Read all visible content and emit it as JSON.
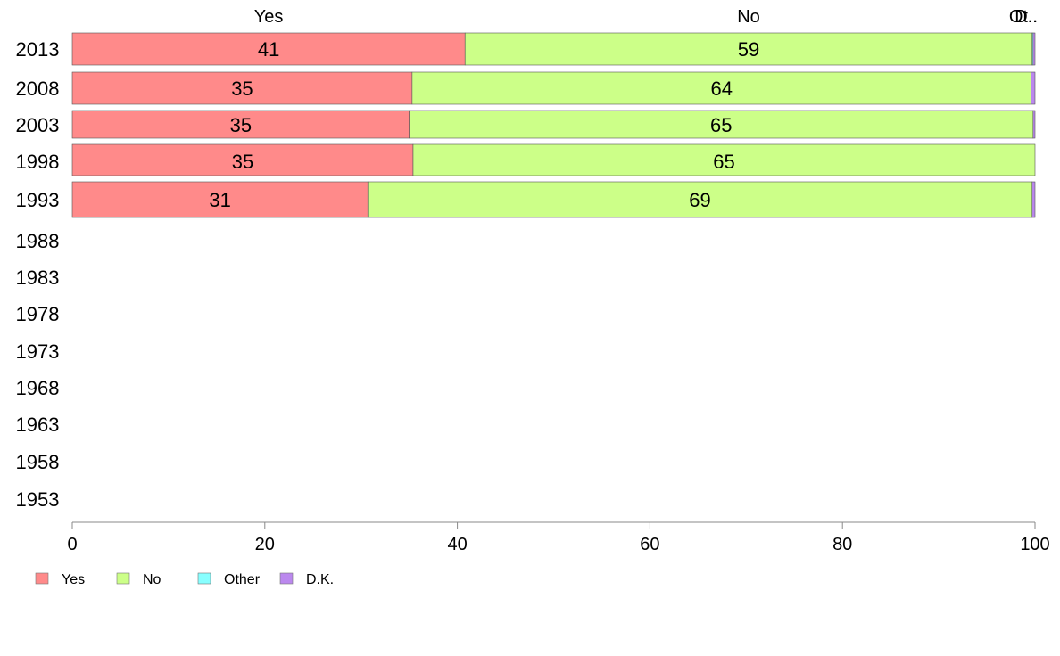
{
  "chart_data": {
    "type": "bar",
    "orientation": "horizontal",
    "stacked": true,
    "title": "",
    "xlabel": "",
    "ylabel": "",
    "xlim": [
      0,
      100
    ],
    "x_ticks": [
      "0",
      "20",
      "40",
      "60",
      "80",
      "100"
    ],
    "categories": [
      "2013",
      "2008",
      "2003",
      "1998",
      "1993",
      "1988",
      "1983",
      "1978",
      "1973",
      "1968",
      "1963",
      "1958",
      "1953"
    ],
    "series": [
      {
        "name": "Yes",
        "color": "#ff8a8a",
        "values": [
          40.8,
          35.3,
          35.0,
          35.4,
          30.7,
          null,
          null,
          null,
          null,
          null,
          null,
          null,
          null
        ],
        "labels": [
          "41",
          "35",
          "35",
          "35",
          "31"
        ]
      },
      {
        "name": "No",
        "color": "#ccff88",
        "values": [
          58.9,
          64.3,
          64.8,
          64.6,
          69.0,
          null,
          null,
          null,
          null,
          null,
          null,
          null,
          null
        ],
        "labels": [
          "59",
          "64",
          "65",
          "65",
          "69"
        ]
      },
      {
        "name": "Other",
        "color": "#88ffff",
        "values": [
          0.1,
          0.0,
          0.0,
          0.0,
          0.0,
          null,
          null,
          null,
          null,
          null,
          null,
          null,
          null
        ]
      },
      {
        "name": "D.K.",
        "color": "#bb88ee",
        "values": [
          0.2,
          0.4,
          0.2,
          0.0,
          0.3,
          null,
          null,
          null,
          null,
          null,
          null,
          null,
          null
        ]
      }
    ],
    "column_headers": [
      "Yes",
      "No",
      "Ot..",
      "D.."
    ],
    "legend": {
      "position": "bottom-left",
      "items": [
        "Yes",
        "No",
        "Other",
        "D.K."
      ]
    },
    "grid": false
  }
}
